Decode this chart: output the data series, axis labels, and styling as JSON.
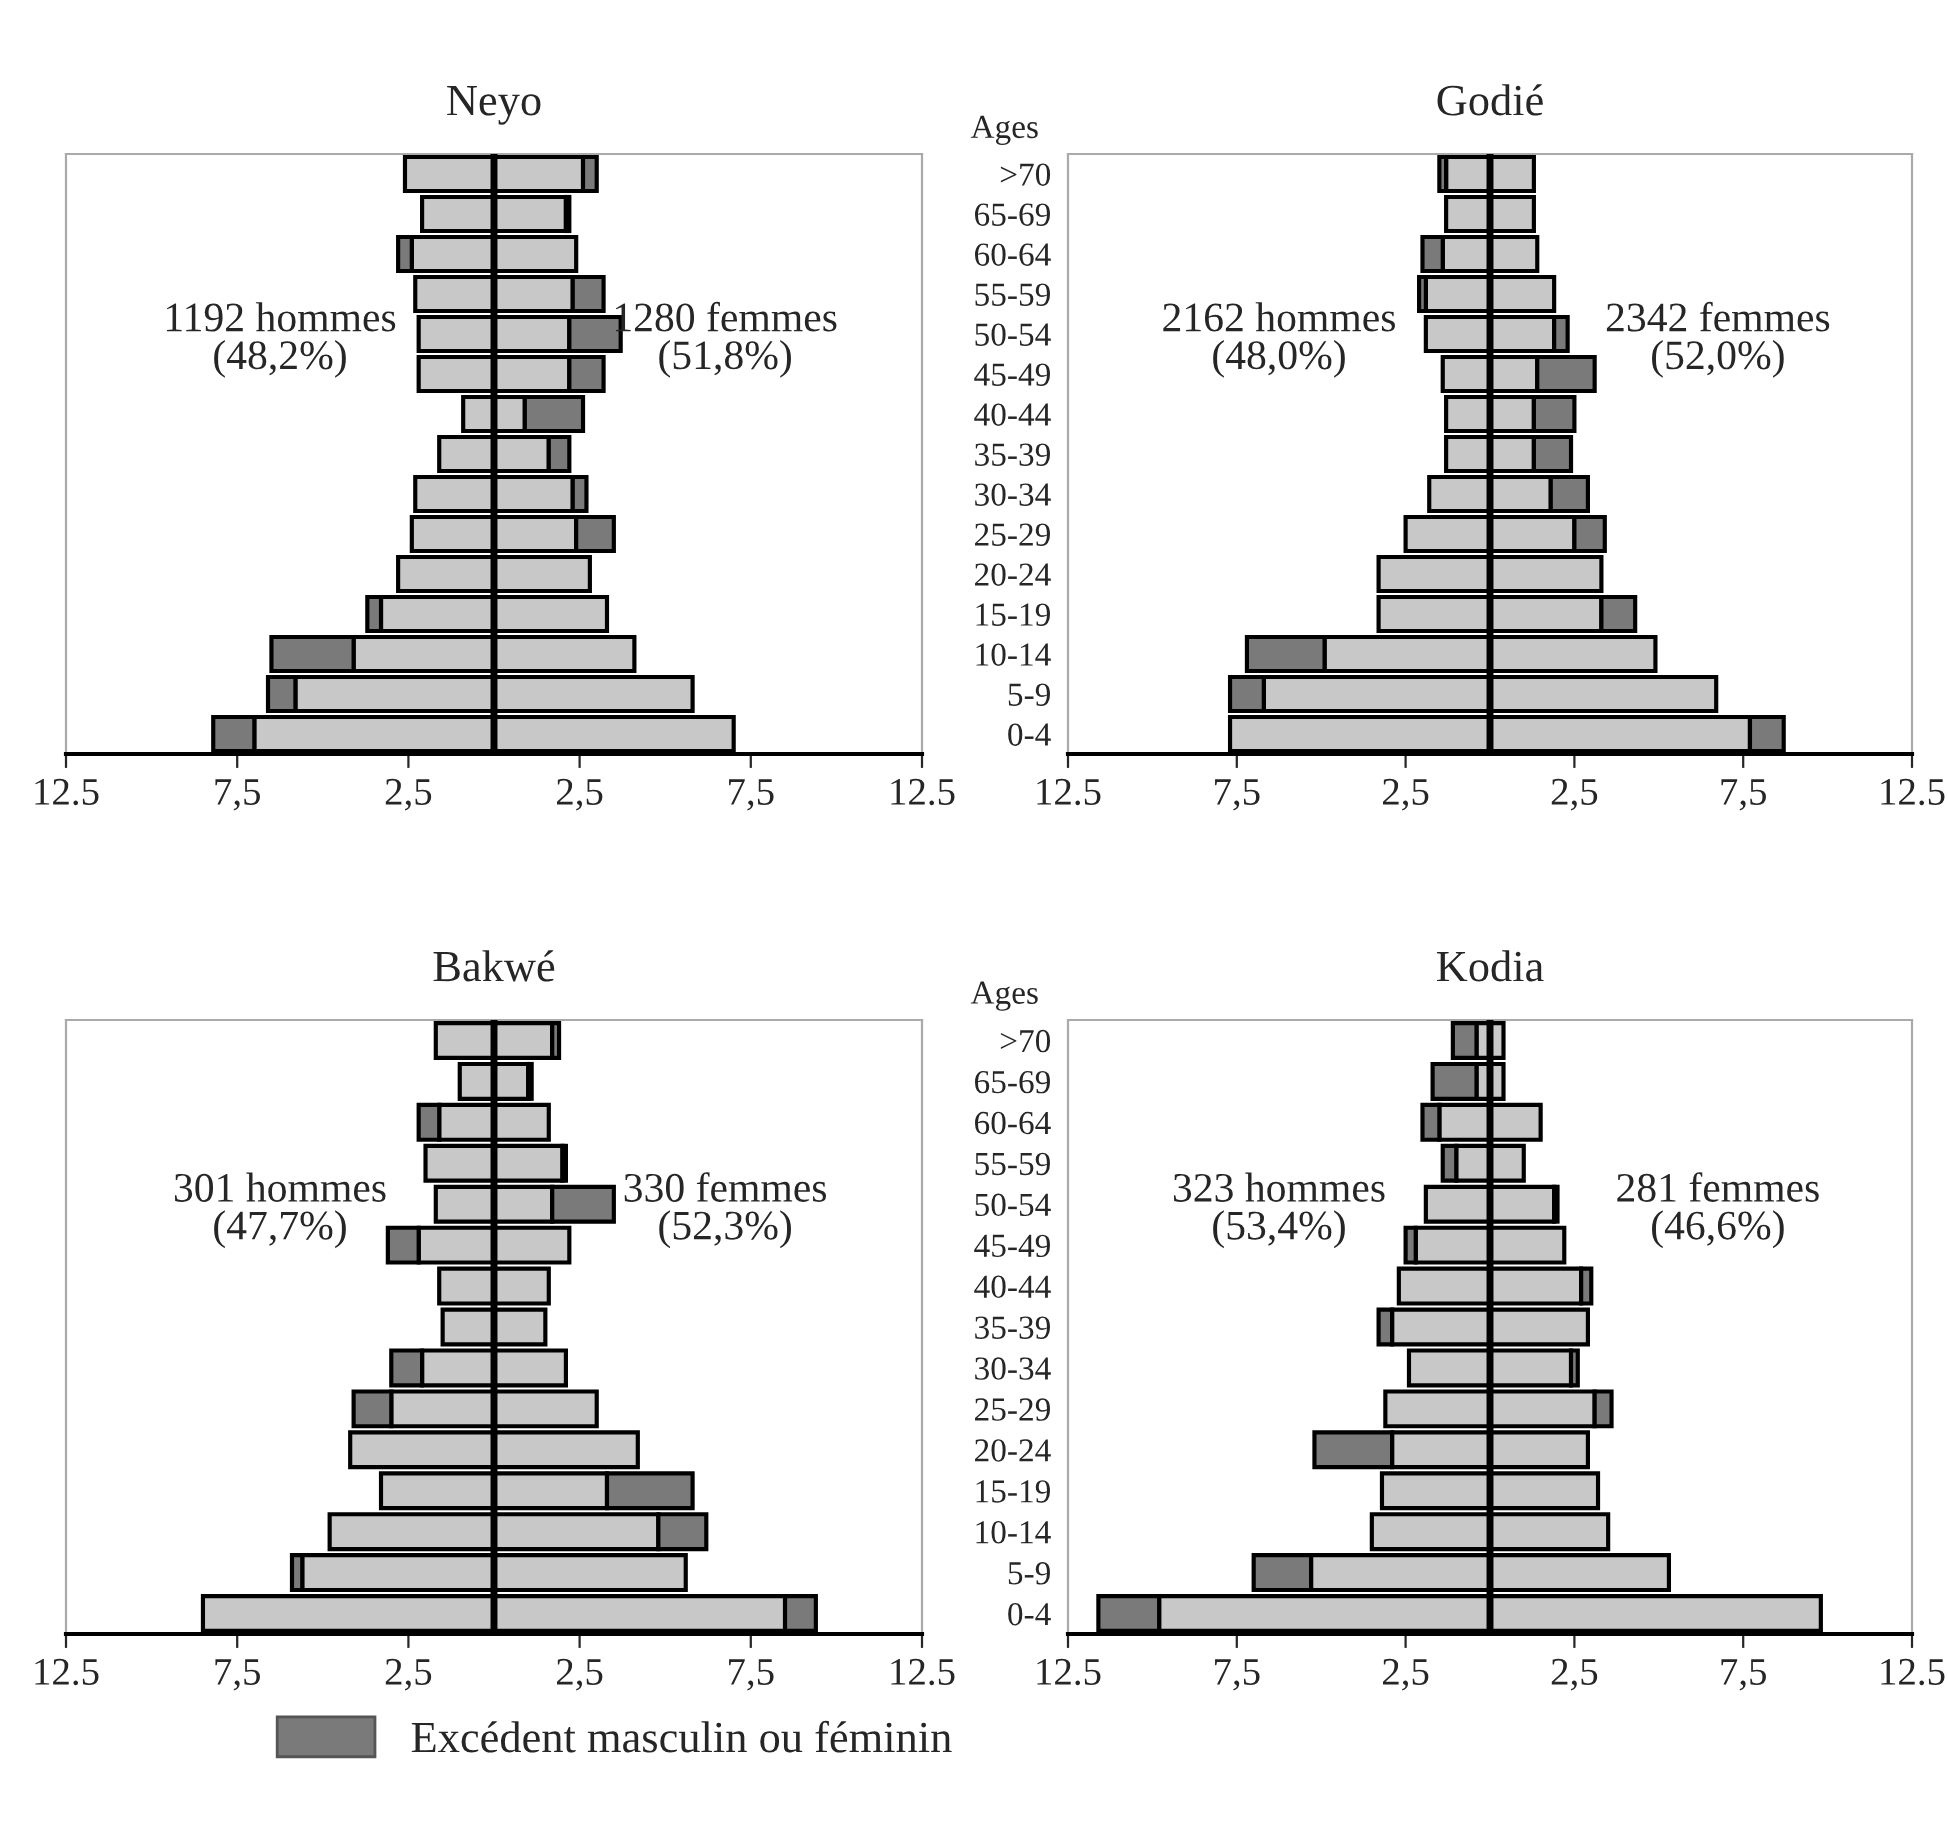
{
  "chart_data": [
    {
      "type": "bar",
      "orientation": "horizontal",
      "stacked": true,
      "title": "Neyo",
      "tick_labels": "x",
      "categories": [
        null,
        null,
        null,
        null,
        null,
        null,
        null,
        null,
        null,
        null,
        null,
        null,
        null,
        null,
        null
      ],
      "xlim": [
        -12.5,
        12.5
      ],
      "xticks": [
        {
          "value": -12.5,
          "label": "12.5"
        },
        {
          "value": -7.5,
          "label": "7,5"
        },
        {
          "value": -2.5,
          "label": "2,5"
        },
        {
          "value": 2.5,
          "label": "2,5"
        },
        {
          "value": 7.5,
          "label": "7,5"
        },
        {
          "value": 12.5,
          "label": "12.5"
        }
      ],
      "ref_lines": [
        {
          "axis": "x",
          "value": 0,
          "color": "#000000"
        }
      ],
      "annotations": [
        "1192 hommes\n(48,2%)",
        "1280 femmes\n(51,8%)"
      ],
      "series": [
        {
          "color": "#c8c8c8",
          "values": [
            -2.6,
            -2.1,
            -2.4,
            -2.3,
            -2.2,
            -2.2,
            -0.9,
            -1.6,
            -2.3,
            -2.4,
            -2.8,
            -3.3,
            -4.1,
            -5.8,
            -7.0
          ]
        },
        {
          "color": "#c8c8c8",
          "values": [
            2.6,
            2.1,
            2.4,
            2.3,
            2.2,
            2.2,
            0.9,
            1.6,
            2.3,
            2.4,
            2.8,
            3.3,
            4.1,
            5.8,
            7.0
          ]
        },
        {
          "color": "#7a7a7a",
          "values": [
            0.4,
            0.1,
            -0.4,
            0.9,
            1.5,
            1.0,
            1.7,
            0.6,
            0.4,
            1.1,
            null,
            -0.4,
            -2.4,
            -0.8,
            -1.2
          ]
        }
      ]
    },
    {
      "type": "bar",
      "orientation": "horizontal",
      "stacked": true,
      "title": "Godié",
      "ylabel": "Ages",
      "categories": [
        ">70",
        "65-69",
        "60-64",
        "55-59",
        "50-54",
        "45-49",
        "40-44",
        "35-39",
        "30-34",
        "25-29",
        "20-24",
        "15-19",
        "10-14",
        "5-9",
        "0-4"
      ],
      "xlim": [
        -12.5,
        12.5
      ],
      "xticks": [
        {
          "value": -12.5,
          "label": "12.5"
        },
        {
          "value": -7.5,
          "label": "7,5"
        },
        {
          "value": -2.5,
          "label": "2,5"
        },
        {
          "value": 2.5,
          "label": "2,5"
        },
        {
          "value": 7.5,
          "label": "7,5"
        },
        {
          "value": 12.5,
          "label": "12.5"
        }
      ],
      "ref_lines": [
        {
          "axis": "x",
          "value": 0,
          "color": "#000000"
        }
      ],
      "annotations": [
        "2162 hommes\n(48,0%)",
        "2342 femmes\n(52,0%)"
      ],
      "series": [
        {
          "color": "#c8c8c8",
          "values": [
            -1.3,
            -1.3,
            -1.4,
            -1.9,
            -1.9,
            -1.4,
            -1.3,
            -1.3,
            -1.8,
            -2.5,
            -3.3,
            -3.3,
            -4.9,
            -6.7,
            -7.7
          ]
        },
        {
          "color": "#c8c8c8",
          "values": [
            1.3,
            1.3,
            1.4,
            1.9,
            1.9,
            1.4,
            1.3,
            1.3,
            1.8,
            2.5,
            3.3,
            3.3,
            4.9,
            6.7,
            7.7
          ]
        },
        {
          "color": "#7a7a7a",
          "values": [
            -0.2,
            null,
            -0.6,
            -0.2,
            0.4,
            1.7,
            1.2,
            1.1,
            1.1,
            0.9,
            null,
            1.0,
            -2.3,
            -1.0,
            1.0
          ]
        }
      ]
    },
    {
      "type": "bar",
      "orientation": "horizontal",
      "stacked": true,
      "title": "Bakwé",
      "tick_labels": "x",
      "legend": "bottom",
      "categories": [
        null,
        null,
        null,
        null,
        null,
        null,
        null,
        null,
        null,
        null,
        null,
        null,
        null,
        null,
        null
      ],
      "xlim": [
        -12.5,
        12.5
      ],
      "xticks": [
        {
          "value": -12.5,
          "label": "12.5"
        },
        {
          "value": -7.5,
          "label": "7,5"
        },
        {
          "value": -2.5,
          "label": "2,5"
        },
        {
          "value": 2.5,
          "label": "2,5"
        },
        {
          "value": 7.5,
          "label": "7,5"
        },
        {
          "value": 12.5,
          "label": "12.5"
        }
      ],
      "ref_lines": [
        {
          "axis": "x",
          "value": 0,
          "color": "#000000"
        }
      ],
      "annotations": [
        "301 hommes\n(47,7%)",
        "330 femmes\n(52,3%)"
      ],
      "series": [
        {
          "color": "#c8c8c8",
          "values": [
            -1.7,
            -1.0,
            -1.6,
            -2.0,
            -1.7,
            -2.2,
            -1.6,
            -1.5,
            -2.1,
            -3.0,
            -4.2,
            -3.3,
            -4.8,
            -5.6,
            -8.5
          ]
        },
        {
          "color": "#c8c8c8",
          "values": [
            1.7,
            1.0,
            1.6,
            2.0,
            1.7,
            2.2,
            1.6,
            1.5,
            2.1,
            3.0,
            4.2,
            3.3,
            4.8,
            5.6,
            8.5
          ]
        },
        {
          "name": "Excédent masculin ou féminin",
          "color": "#7a7a7a",
          "values": [
            0.2,
            0.1,
            -0.6,
            0.1,
            1.8,
            -0.9,
            null,
            null,
            -0.9,
            -1.1,
            null,
            2.5,
            1.4,
            -0.3,
            0.9
          ]
        }
      ]
    },
    {
      "type": "bar",
      "orientation": "horizontal",
      "stacked": true,
      "title": "Kodia",
      "ylabel": "Ages",
      "categories": [
        ">70",
        "65-69",
        "60-64",
        "55-59",
        "50-54",
        "45-49",
        "40-44",
        "35-39",
        "30-34",
        "25-29",
        "20-24",
        "15-19",
        "10-14",
        "5-9",
        "0-4"
      ],
      "xlim": [
        -12.5,
        12.5
      ],
      "xticks": [
        {
          "value": -12.5,
          "label": "12.5"
        },
        {
          "value": -7.5,
          "label": "7,5"
        },
        {
          "value": -2.5,
          "label": "2,5"
        },
        {
          "value": 2.5,
          "label": "2,5"
        },
        {
          "value": 7.5,
          "label": "7,5"
        },
        {
          "value": 12.5,
          "label": "12.5"
        }
      ],
      "ref_lines": [
        {
          "axis": "x",
          "value": 0,
          "color": "#000000"
        }
      ],
      "annotations": [
        "323 hommes\n(53,4%)",
        "281 femmes\n(46,6%)"
      ],
      "series": [
        {
          "color": "#c8c8c8",
          "values": [
            -0.4,
            -0.4,
            -1.5,
            -1.0,
            -1.9,
            -2.2,
            -2.7,
            -2.9,
            -2.4,
            -3.1,
            -2.9,
            -3.2,
            -3.5,
            -5.3,
            -9.8
          ]
        },
        {
          "color": "#c8c8c8",
          "values": [
            0.4,
            0.4,
            1.5,
            1.0,
            1.9,
            2.2,
            2.7,
            2.9,
            2.4,
            3.1,
            2.9,
            3.2,
            3.5,
            5.3,
            9.8
          ]
        },
        {
          "color": "#7a7a7a",
          "values": [
            -0.7,
            -1.3,
            -0.5,
            -0.4,
            0.1,
            -0.3,
            0.3,
            -0.4,
            0.2,
            0.5,
            -2.3,
            null,
            null,
            -1.7,
            -1.8
          ]
        }
      ]
    }
  ]
}
